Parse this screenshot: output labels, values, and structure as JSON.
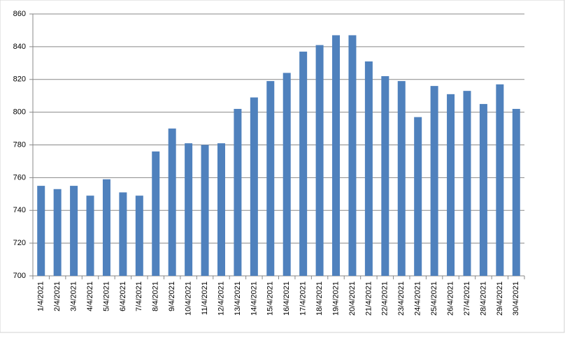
{
  "chart_data": {
    "type": "bar",
    "categories": [
      "1/4/2021",
      "2/4/2021",
      "3/4/2021",
      "4/4/2021",
      "5/4/2021",
      "6/4/2021",
      "7/4/2021",
      "8/4/2021",
      "9/4/2021",
      "10/4/2021",
      "11/4/2021",
      "12/4/2021",
      "13/4/2021",
      "14/4/2021",
      "15/4/2021",
      "16/4/2021",
      "17/4/2021",
      "18/4/2021",
      "19/4/2021",
      "20/4/2021",
      "21/4/2021",
      "22/4/2021",
      "23/4/2021",
      "24/4/2021",
      "25/4/2021",
      "26/4/2021",
      "27/4/2021",
      "28/4/2021",
      "29/4/2021",
      "30/4/2021"
    ],
    "values": [
      755,
      753,
      755,
      749,
      759,
      751,
      749,
      776,
      790,
      781,
      780,
      781,
      802,
      809,
      819,
      824,
      837,
      841,
      847,
      847,
      831,
      822,
      819,
      797,
      816,
      811,
      813,
      805,
      817,
      802
    ],
    "color": "#4f81bd",
    "ylim": [
      700,
      860
    ],
    "yticks": [
      700,
      720,
      740,
      760,
      780,
      800,
      820,
      840,
      860
    ],
    "grid": true
  }
}
